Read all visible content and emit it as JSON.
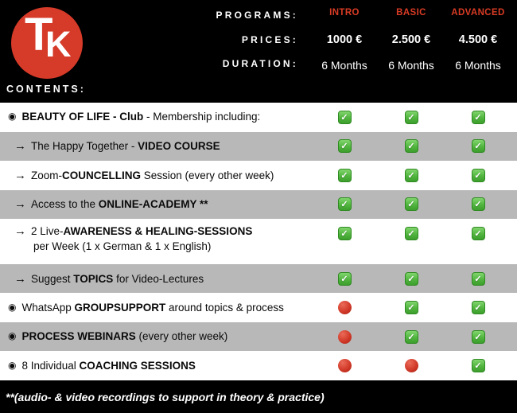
{
  "colors": {
    "accent_red": "#d93b24",
    "logo_red": "#d63a28",
    "row_gray": "#b8b8b8",
    "check_green": "#51b53f",
    "dot_red": "#d23a29",
    "background_black": "#000000"
  },
  "logo": {
    "letters": [
      "T",
      "K"
    ]
  },
  "header": {
    "programs_label": "PROGRAMS:",
    "prices_label": "PRICES:",
    "duration_label": "DURATION:",
    "contents_label": "CONTENTS:",
    "programs": [
      "INTRO",
      "BASIC",
      "ADVANCED"
    ],
    "prices": [
      "1000 €",
      "2.500 €",
      "4.500 €"
    ],
    "durations": [
      "6 Months",
      "6 Months",
      "6 Months"
    ]
  },
  "markers": {
    "bullseye": "◉",
    "arrow": "→"
  },
  "icons": {
    "check_glyph": "✓"
  },
  "rows": [
    {
      "marker": "bullseye",
      "lines": [
        [
          {
            "t": "BEAUTY OF LIFE - Club",
            "b": true
          },
          {
            "t": " - Membership including:",
            "b": false
          }
        ]
      ],
      "cells": [
        "check",
        "check",
        "check"
      ]
    },
    {
      "marker": "arrow",
      "lines": [
        [
          {
            "t": "The Happy Together - ",
            "b": false
          },
          {
            "t": "VIDEO COURSE",
            "b": true
          }
        ]
      ],
      "cells": [
        "check",
        "check",
        "check"
      ]
    },
    {
      "marker": "arrow",
      "lines": [
        [
          {
            "t": "Zoom-",
            "b": false
          },
          {
            "t": "COUNCELLING",
            "b": true
          },
          {
            "t": " Session (every other week)",
            "b": false
          }
        ]
      ],
      "cells": [
        "check",
        "check",
        "check"
      ]
    },
    {
      "marker": "arrow",
      "lines": [
        [
          {
            "t": "Access to the ",
            "b": false
          },
          {
            "t": "ONLINE-ACADEMY **",
            "b": true
          }
        ]
      ],
      "cells": [
        "check",
        "check",
        "check"
      ]
    },
    {
      "marker": "arrow",
      "lines": [
        [
          {
            "t": "2 Live-",
            "b": false
          },
          {
            "t": "AWARENESS & HEALING-SESSIONS",
            "b": true
          }
        ],
        [
          {
            "t": "per Week (1 x German & 1 x English)",
            "b": false
          }
        ]
      ],
      "cells": [
        "check",
        "check",
        "check"
      ]
    },
    {
      "marker": "arrow",
      "lines": [
        [
          {
            "t": "Suggest ",
            "b": false
          },
          {
            "t": "TOPICS",
            "b": true
          },
          {
            "t": " for Video-Lectures",
            "b": false
          }
        ]
      ],
      "cells": [
        "check",
        "check",
        "check"
      ]
    },
    {
      "marker": "bullseye",
      "lines": [
        [
          {
            "t": "WhatsApp ",
            "b": false
          },
          {
            "t": "GROUPSUPPORT",
            "b": true
          },
          {
            "t": " around topics & process",
            "b": false
          }
        ]
      ],
      "cells": [
        "dot",
        "check",
        "check"
      ]
    },
    {
      "marker": "bullseye",
      "lines": [
        [
          {
            "t": "PROCESS WEBINARS",
            "b": true
          },
          {
            "t": " (every other week)",
            "b": false
          }
        ]
      ],
      "cells": [
        "dot",
        "check",
        "check"
      ]
    },
    {
      "marker": "bullseye",
      "lines": [
        [
          {
            "t": "8 Individual ",
            "b": false
          },
          {
            "t": "COACHING SESSIONS",
            "b": true
          }
        ]
      ],
      "cells": [
        "dot",
        "dot",
        "check"
      ]
    }
  ],
  "footer": {
    "note": "**(audio- & video recordings to support in theory & practice)"
  }
}
